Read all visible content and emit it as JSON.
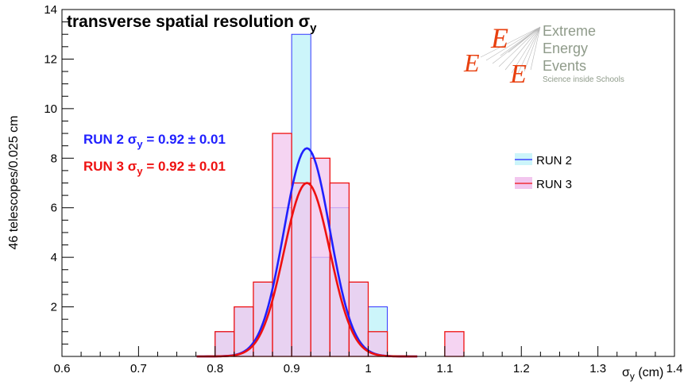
{
  "chart_data": {
    "type": "bar",
    "title": "transverse spatial resolution σ",
    "title_sub": "y",
    "ylabel": "46 telescopes/0.025 cm",
    "xlabel_main": "σ",
    "xlabel_sub": "y",
    "xlabel_unit": " (cm)",
    "xlim": [
      0.6,
      1.4
    ],
    "ylim": [
      0,
      14
    ],
    "bin_width": 0.025,
    "x_ticks": [
      "0.6",
      "0.7",
      "0.8",
      "0.9",
      "1",
      "1.1",
      "1.2",
      "1.3",
      "1.4"
    ],
    "y_ticks": [
      "2",
      "4",
      "6",
      "8",
      "10",
      "12",
      "14"
    ],
    "series": [
      {
        "name": "RUN 2",
        "color": "#2020ff",
        "fill": "#ccf5fa",
        "bins": [
          {
            "x": 0.8,
            "y": 1
          },
          {
            "x": 0.825,
            "y": 2
          },
          {
            "x": 0.85,
            "y": 3
          },
          {
            "x": 0.875,
            "y": 6
          },
          {
            "x": 0.9,
            "y": 13
          },
          {
            "x": 0.925,
            "y": 4
          },
          {
            "x": 0.95,
            "y": 6
          },
          {
            "x": 0.975,
            "y": 3
          },
          {
            "x": 1.0,
            "y": 2
          },
          {
            "x": 1.025,
            "y": 0
          }
        ],
        "fit": {
          "mean": 0.92,
          "sigma": 0.03,
          "amp": 8.4
        },
        "label_prefix": "RUN 2 σ",
        "label_sub": "y",
        "label_value": " = 0.92 ± 0.01"
      },
      {
        "name": "RUN 3",
        "color": "#ee1111",
        "fill": "#f2c6ee",
        "bins": [
          {
            "x": 0.8,
            "y": 1
          },
          {
            "x": 0.825,
            "y": 2
          },
          {
            "x": 0.85,
            "y": 3
          },
          {
            "x": 0.875,
            "y": 9
          },
          {
            "x": 0.9,
            "y": 7
          },
          {
            "x": 0.925,
            "y": 8
          },
          {
            "x": 0.95,
            "y": 7
          },
          {
            "x": 0.975,
            "y": 3
          },
          {
            "x": 1.0,
            "y": 1
          },
          {
            "x": 1.1,
            "y": 1
          }
        ],
        "fit": {
          "mean": 0.92,
          "sigma": 0.03,
          "amp": 7.0
        },
        "label_prefix": "RUN 3 σ",
        "label_sub": "y",
        "label_value": " = 0.92 ± 0.01"
      }
    ],
    "legend": {
      "position": "right",
      "entries": [
        "RUN 2",
        "RUN 3"
      ]
    },
    "logo": {
      "words": [
        "Extreme",
        "Energy",
        "Events"
      ],
      "subtitle": "Science inside Schools",
      "accent": "#e8400f"
    },
    "grid": false
  }
}
